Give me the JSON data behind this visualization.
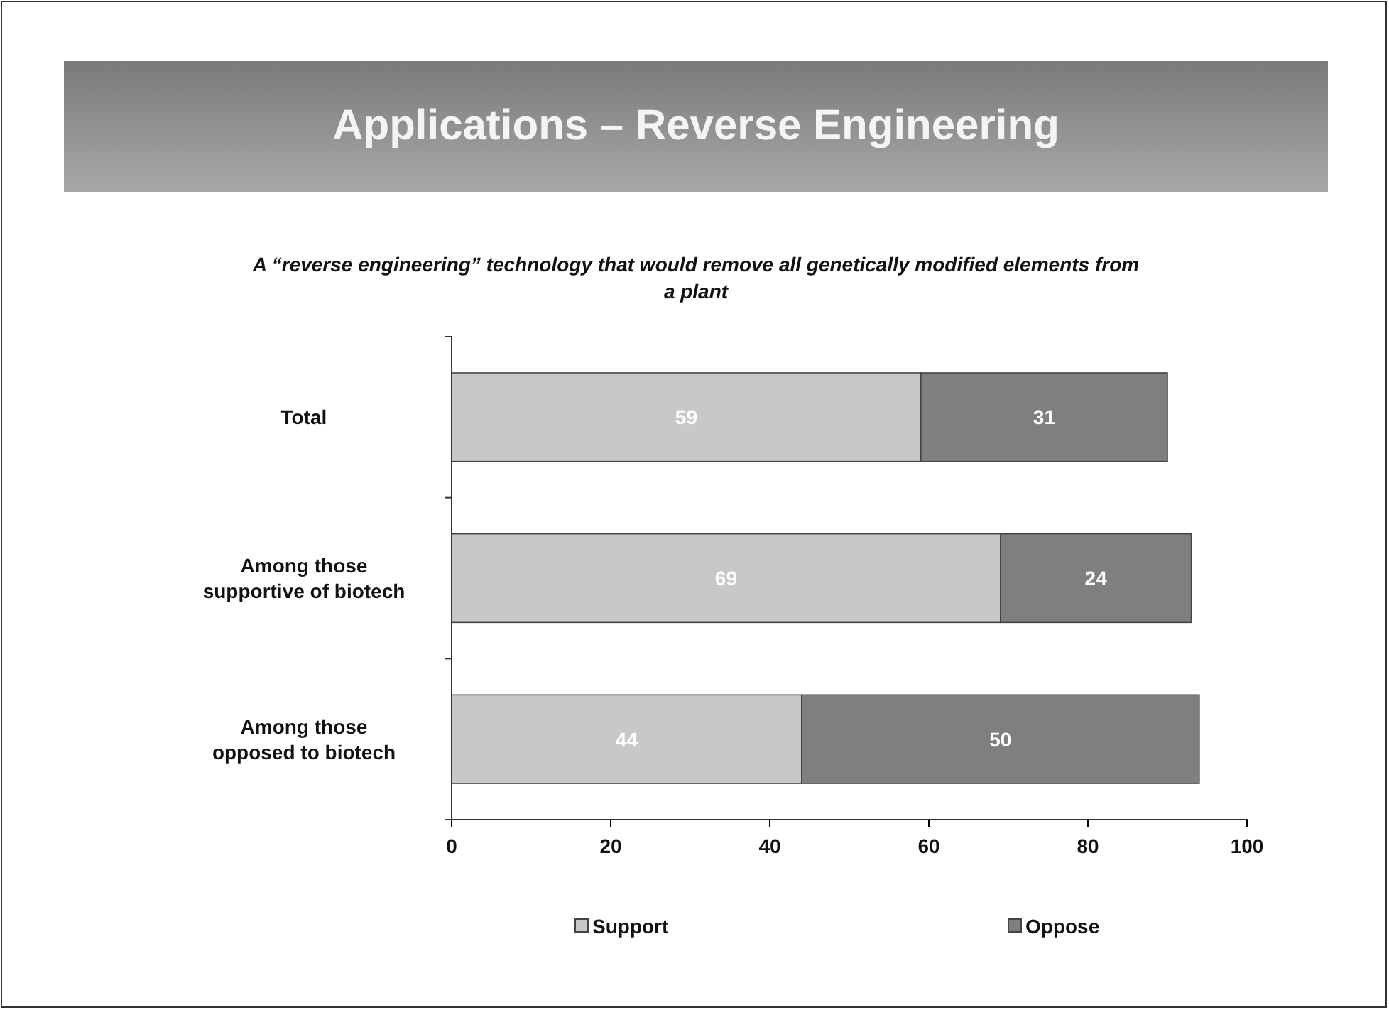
{
  "chart_data": {
    "type": "bar",
    "orientation": "horizontal",
    "stacked": true,
    "title": "Applications – Reverse Engineering",
    "subtitle": "A “reverse engineering” technology that would remove all genetically modified elements from a plant",
    "categories": [
      "Total",
      "Among those supportive of biotech",
      "Among those opposed to biotech"
    ],
    "series": [
      {
        "name": "Support",
        "color": "#c8c8c8",
        "values": [
          59,
          69,
          44
        ]
      },
      {
        "name": "Oppose",
        "color": "#7f7f7f",
        "values": [
          31,
          24,
          50
        ]
      }
    ],
    "xlim": [
      0,
      100
    ],
    "xticks": [
      0,
      20,
      40,
      60,
      80,
      100
    ],
    "data_labels": true,
    "legend": "bottom",
    "grid": false
  }
}
